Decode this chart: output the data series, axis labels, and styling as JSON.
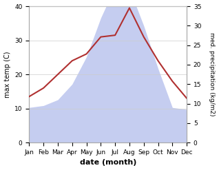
{
  "months": [
    "Jan",
    "Feb",
    "Mar",
    "Apr",
    "May",
    "Jun",
    "Jul",
    "Aug",
    "Sep",
    "Oct",
    "Nov",
    "Dec"
  ],
  "temp": [
    13.5,
    16.0,
    20.0,
    24.0,
    26.0,
    31.0,
    31.5,
    39.5,
    31.0,
    24.0,
    18.0,
    13.0
  ],
  "precip": [
    9.0,
    9.5,
    11.0,
    15.0,
    22.0,
    32.0,
    40.0,
    39.5,
    30.0,
    19.0,
    9.0,
    8.5
  ],
  "temp_color": "#b03030",
  "precip_fill_color": "#c5cdf0",
  "ylabel_left": "max temp (C)",
  "ylabel_right": "med. precipitation (kg/m2)",
  "xlabel": "date (month)",
  "ylim_left": [
    0,
    40
  ],
  "ylim_right": [
    0,
    35
  ],
  "yticks_left": [
    0,
    10,
    20,
    30,
    40
  ],
  "yticks_right": [
    0,
    5,
    10,
    15,
    20,
    25,
    30,
    35
  ],
  "background_color": "#ffffff",
  "grid_color": "#cccccc"
}
